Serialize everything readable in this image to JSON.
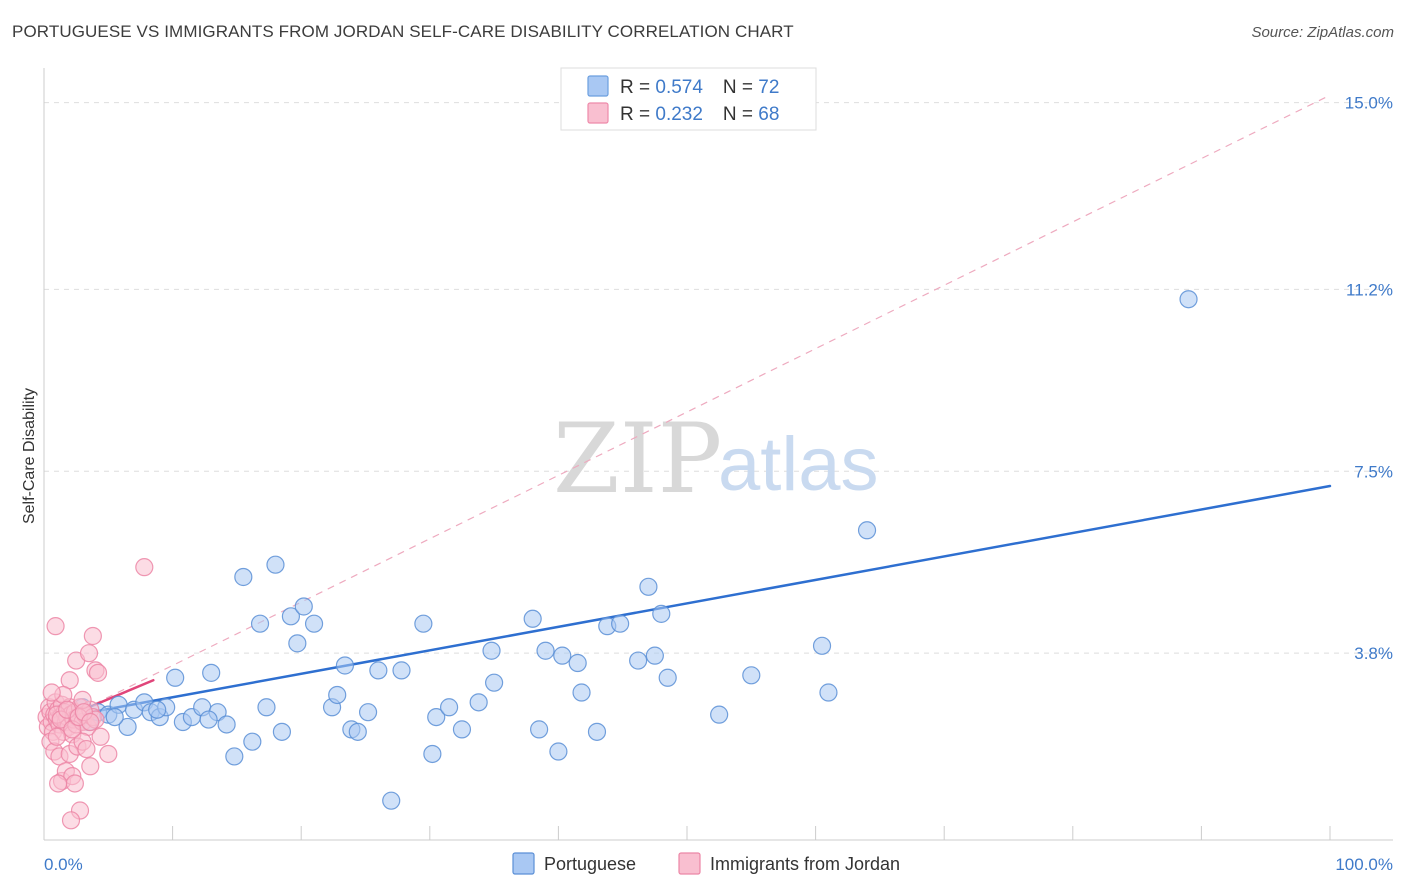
{
  "title": "PORTUGUESE VS IMMIGRANTS FROM JORDAN SELF-CARE DISABILITY CORRELATION CHART",
  "source": "Source: ZipAtlas.com",
  "watermark": {
    "zip": "ZIP",
    "atlas": "atlas"
  },
  "chart_data": {
    "type": "scatter",
    "xlabel": "",
    "ylabel": "Self-Care Disability",
    "xlim": [
      0,
      100
    ],
    "ylim": [
      0,
      15.5
    ],
    "x_tick_labels": [
      "0.0%",
      "100.0%"
    ],
    "y_ticks": [
      {
        "value": 3.8,
        "label": "3.8%"
      },
      {
        "value": 7.5,
        "label": "7.5%"
      },
      {
        "value": 11.2,
        "label": "11.2%"
      },
      {
        "value": 15.0,
        "label": "15.0%"
      }
    ],
    "legend_top": [
      {
        "r_label": "R = ",
        "r": "0.574",
        "n_label": "N = ",
        "n": "72",
        "color": "#a9c8f3",
        "stroke": "#6c9fdf"
      },
      {
        "r_label": "R = ",
        "r": "0.232",
        "n_label": "N = ",
        "n": "68",
        "color": "#f9bfd0",
        "stroke": "#ee8aaa"
      }
    ],
    "series": [
      {
        "name": "Portuguese",
        "color": "#a9c8f3",
        "stroke": "#5b8fd6",
        "line_color": "#2e6fd0",
        "trend": [
          [
            0.5,
            2.45
          ],
          [
            100,
            7.2
          ]
        ],
        "points": [
          [
            1.5,
            2.6
          ],
          [
            2.2,
            2.5
          ],
          [
            3.0,
            2.7
          ],
          [
            3.5,
            2.4
          ],
          [
            4.2,
            2.6
          ],
          [
            5.0,
            2.55
          ],
          [
            5.8,
            2.75
          ],
          [
            6.5,
            2.3
          ],
          [
            7.0,
            2.65
          ],
          [
            7.8,
            2.8
          ],
          [
            8.3,
            2.6
          ],
          [
            9.0,
            2.5
          ],
          [
            9.5,
            2.7
          ],
          [
            10.2,
            3.3
          ],
          [
            10.8,
            2.4
          ],
          [
            11.5,
            2.5
          ],
          [
            12.3,
            2.7
          ],
          [
            13.0,
            3.4
          ],
          [
            13.5,
            2.6
          ],
          [
            14.2,
            2.35
          ],
          [
            14.8,
            1.7
          ],
          [
            15.5,
            5.35
          ],
          [
            16.2,
            2.0
          ],
          [
            16.8,
            4.4
          ],
          [
            17.3,
            2.7
          ],
          [
            18.0,
            5.6
          ],
          [
            18.5,
            2.2
          ],
          [
            19.2,
            4.55
          ],
          [
            19.7,
            4.0
          ],
          [
            20.2,
            4.75
          ],
          [
            21.0,
            4.4
          ],
          [
            22.4,
            2.7
          ],
          [
            22.8,
            2.95
          ],
          [
            23.4,
            3.55
          ],
          [
            23.9,
            2.25
          ],
          [
            24.4,
            2.2
          ],
          [
            25.2,
            2.6
          ],
          [
            26.0,
            3.45
          ],
          [
            27.0,
            0.8
          ],
          [
            27.8,
            3.45
          ],
          [
            29.5,
            4.4
          ],
          [
            30.2,
            1.75
          ],
          [
            30.5,
            2.5
          ],
          [
            31.5,
            2.7
          ],
          [
            32.5,
            2.25
          ],
          [
            33.8,
            2.8
          ],
          [
            34.8,
            3.85
          ],
          [
            35.0,
            3.2
          ],
          [
            38.0,
            4.5
          ],
          [
            38.5,
            2.25
          ],
          [
            39.0,
            3.85
          ],
          [
            40.0,
            1.8
          ],
          [
            40.3,
            3.75
          ],
          [
            41.5,
            3.6
          ],
          [
            41.8,
            3.0
          ],
          [
            43.0,
            2.2
          ],
          [
            43.8,
            4.35
          ],
          [
            44.8,
            4.4
          ],
          [
            46.2,
            3.65
          ],
          [
            47.0,
            5.15
          ],
          [
            47.5,
            3.75
          ],
          [
            48.0,
            4.6
          ],
          [
            48.5,
            3.3
          ],
          [
            52.5,
            2.55
          ],
          [
            55.0,
            3.35
          ],
          [
            60.5,
            3.95
          ],
          [
            61.0,
            3.0
          ],
          [
            64.0,
            6.3
          ],
          [
            89.0,
            11.0
          ],
          [
            5.5,
            2.5
          ],
          [
            12.8,
            2.45
          ],
          [
            8.8,
            2.65
          ]
        ]
      },
      {
        "name": "Immigrants from Jordan",
        "color": "#f9bfd0",
        "stroke": "#ec86a6",
        "line_color": "#e0457a",
        "trend": [
          [
            0.3,
            2.35
          ],
          [
            8.5,
            3.25
          ]
        ],
        "dashed_trend": [
          [
            0.3,
            2.3
          ],
          [
            100,
            15.15
          ]
        ],
        "points": [
          [
            0.2,
            2.5
          ],
          [
            0.3,
            2.3
          ],
          [
            0.4,
            2.7
          ],
          [
            0.5,
            2.6
          ],
          [
            0.6,
            2.4
          ],
          [
            0.7,
            2.2
          ],
          [
            0.8,
            2.55
          ],
          [
            0.9,
            2.8
          ],
          [
            1.0,
            2.45
          ],
          [
            1.1,
            2.65
          ],
          [
            1.2,
            2.35
          ],
          [
            1.3,
            2.5
          ],
          [
            1.4,
            2.75
          ],
          [
            1.5,
            2.2
          ],
          [
            1.6,
            2.6
          ],
          [
            1.7,
            2.4
          ],
          [
            1.8,
            2.5
          ],
          [
            1.9,
            2.3
          ],
          [
            2.0,
            2.7
          ],
          [
            2.1,
            2.55
          ],
          [
            2.2,
            2.15
          ],
          [
            2.3,
            2.45
          ],
          [
            2.4,
            2.6
          ],
          [
            2.5,
            2.35
          ],
          [
            2.6,
            2.5
          ],
          [
            2.8,
            2.7
          ],
          [
            3.0,
            2.4
          ],
          [
            3.2,
            2.55
          ],
          [
            3.4,
            2.3
          ],
          [
            3.6,
            2.65
          ],
          [
            3.8,
            2.5
          ],
          [
            4.0,
            2.45
          ],
          [
            0.5,
            2.0
          ],
          [
            0.8,
            1.8
          ],
          [
            1.0,
            2.1
          ],
          [
            1.2,
            1.7
          ],
          [
            1.4,
            1.2
          ],
          [
            1.7,
            1.4
          ],
          [
            2.0,
            1.75
          ],
          [
            2.2,
            1.3
          ],
          [
            2.4,
            1.15
          ],
          [
            2.6,
            1.9
          ],
          [
            2.8,
            0.6
          ],
          [
            3.0,
            2.0
          ],
          [
            3.3,
            1.85
          ],
          [
            3.6,
            1.5
          ],
          [
            0.9,
            4.35
          ],
          [
            2.0,
            3.25
          ],
          [
            2.5,
            3.65
          ],
          [
            3.0,
            2.85
          ],
          [
            3.5,
            3.8
          ],
          [
            3.8,
            4.15
          ],
          [
            4.0,
            3.45
          ],
          [
            4.2,
            3.4
          ],
          [
            1.5,
            2.95
          ],
          [
            0.6,
            3.0
          ],
          [
            1.0,
            2.55
          ],
          [
            1.3,
            2.45
          ],
          [
            1.8,
            2.65
          ],
          [
            2.2,
            2.25
          ],
          [
            2.7,
            2.5
          ],
          [
            3.1,
            2.6
          ],
          [
            3.6,
            2.4
          ],
          [
            4.4,
            2.1
          ],
          [
            5.0,
            1.75
          ],
          [
            7.8,
            5.55
          ],
          [
            2.1,
            0.4
          ],
          [
            1.1,
            1.15
          ]
        ]
      }
    ]
  }
}
